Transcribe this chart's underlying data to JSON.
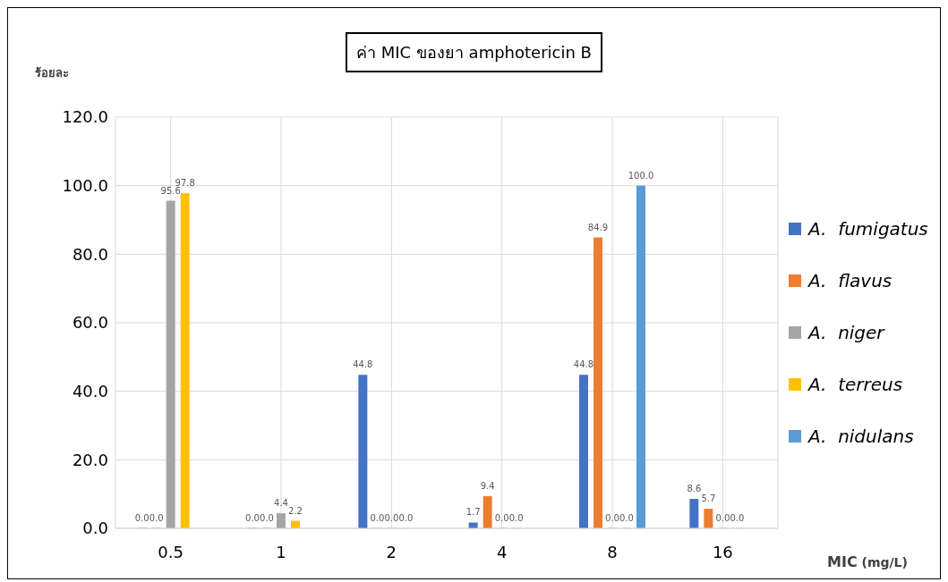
{
  "chart_data": {
    "type": "bar",
    "title": "ค่า MIC ของยา amphotericin B",
    "xlabel": "MIC (mg/L)",
    "ylabel": "ร้อยละ",
    "categories": [
      "0.5",
      "1",
      "2",
      "4",
      "8",
      "16"
    ],
    "series": [
      {
        "name": "A.  fumigatus",
        "color": "#4472c4",
        "values": [
          0.0,
          0.0,
          44.8,
          1.7,
          44.8,
          8.6
        ],
        "value_labels": [
          "0.0",
          "0.0",
          "44.8",
          "1.7",
          "44.8",
          "8.6"
        ]
      },
      {
        "name": "A.  flavus",
        "color": "#ed7d31",
        "values": [
          0.0,
          0.0,
          0.0,
          9.4,
          84.9,
          5.7
        ],
        "value_labels": [
          "0.0",
          "0.0",
          "0.0",
          "9.4",
          "84.9",
          "5.7"
        ]
      },
      {
        "name": "A.  niger",
        "color": "#a5a5a5",
        "values": [
          95.6,
          4.4,
          0.0,
          0.0,
          0.0,
          0.0
        ],
        "value_labels": [
          "95.6",
          "4.4",
          "0.0",
          "0.0",
          "0.0",
          "0.0"
        ]
      },
      {
        "name": "A.  terreus",
        "color": "#ffc000",
        "values": [
          97.8,
          2.2,
          0.0,
          0.0,
          0.0,
          0.0
        ],
        "value_labels": [
          "97.8",
          "2.2",
          "0.0",
          "0.0",
          "0.0",
          "0.0"
        ]
      },
      {
        "name": "A.  nidulans",
        "color": "#5b9bd5",
        "values": [
          null,
          null,
          null,
          null,
          100.0,
          null
        ],
        "value_labels": [
          null,
          null,
          null,
          null,
          "100.0",
          null
        ]
      }
    ],
    "ylim": [
      0,
      120
    ],
    "yticks": [
      {
        "value": 0,
        "label": "0.0"
      },
      {
        "value": 20,
        "label": "20.0"
      },
      {
        "value": 40,
        "label": "40.0"
      },
      {
        "value": 60,
        "label": "60.0"
      },
      {
        "value": 80,
        "label": "80.0"
      },
      {
        "value": 100,
        "label": "100.0"
      },
      {
        "value": 120,
        "label": "120.0"
      }
    ],
    "grid": true,
    "legend": "right"
  }
}
